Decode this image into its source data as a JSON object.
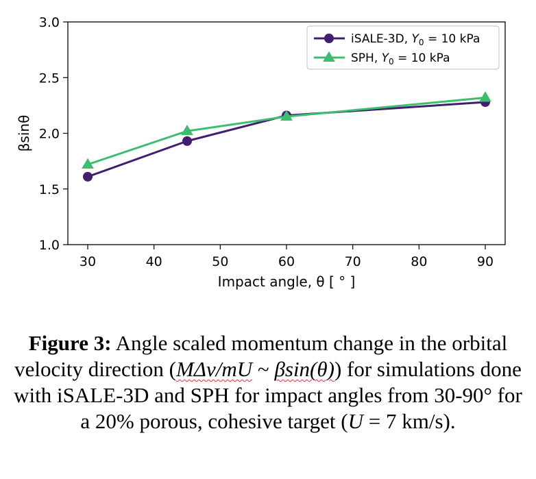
{
  "chart_data": {
    "type": "line",
    "x": [
      30,
      45,
      60,
      90
    ],
    "series": [
      {
        "name_parts": [
          "iSALE-3D, ",
          "Y",
          "0",
          " = 10 kPa"
        ],
        "values": [
          1.61,
          1.93,
          2.16,
          2.28
        ],
        "color": "#3f1f6e",
        "marker": "circle"
      },
      {
        "name_parts": [
          "SPH, ",
          "Y",
          "0",
          " = 10 kPa"
        ],
        "values": [
          1.72,
          2.02,
          2.15,
          2.32
        ],
        "color": "#3dbd6e",
        "marker": "triangle"
      }
    ],
    "xlim": [
      27,
      93
    ],
    "ylim": [
      1.0,
      3.0
    ],
    "xticks": [
      "30",
      "40",
      "50",
      "60",
      "70",
      "80",
      "90"
    ],
    "yticks": [
      "1.0",
      "1.5",
      "2.0",
      "2.5",
      "3.0"
    ],
    "xlabel": "Impact angle, θ [ ° ]",
    "ylabel": "βsinθ",
    "grid": false,
    "legend": "top-right"
  },
  "caption": {
    "label": "Figure 3:",
    "t1": " Angle scaled momentum change in the orbital velocity direction (",
    "formula1": "MΔv/mU",
    "t2": " ~ ",
    "formula2": "βsin(θ)",
    "t3": ") for simulations done with iSALE-3D and SPH for impact angles from 30-90° for a 20% porous, cohesive target (",
    "u": "U",
    "t4": " = 7 km/s)."
  }
}
